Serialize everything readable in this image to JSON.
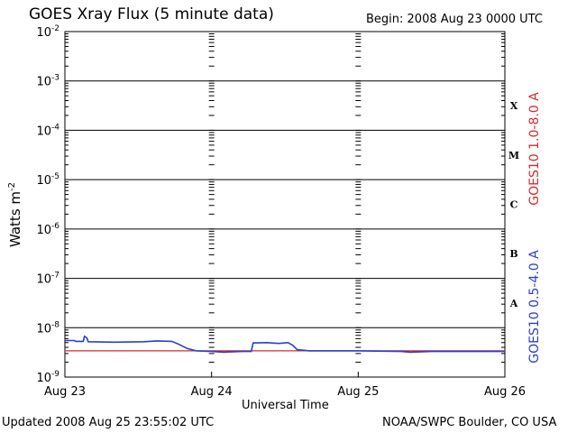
{
  "title": "GOES Xray Flux (5 minute data)",
  "begin_label": "Begin:  2008 Aug 23 0000 UTC",
  "updated_label": "Updated 2008 Aug 25 23:55:02 UTC",
  "source_label": "NOAA/SWPC Boulder, CO USA",
  "colors": {
    "long_channel": "#d52b2b",
    "short_channel": "#2a3fcf",
    "axis": "#000000"
  },
  "chart_data": {
    "type": "line",
    "xlabel": "Universal Time",
    "ylabel": "Watts m",
    "ylabel_exponent": "-2",
    "x_ticks": [
      "Aug 23",
      "Aug 24",
      "Aug 25",
      "Aug 26"
    ],
    "xlim_hours": [
      0,
      72
    ],
    "yscale": "log",
    "ylim": [
      1e-09,
      0.01
    ],
    "y_tick_labels": [
      {
        "base": "10",
        "exp": "-2",
        "value": 0.01
      },
      {
        "base": "10",
        "exp": "-3",
        "value": 0.001
      },
      {
        "base": "10",
        "exp": "-4",
        "value": 0.0001
      },
      {
        "base": "10",
        "exp": "-5",
        "value": 1e-05
      },
      {
        "base": "10",
        "exp": "-6",
        "value": 1e-06
      },
      {
        "base": "10",
        "exp": "-7",
        "value": 1e-07
      },
      {
        "base": "10",
        "exp": "-8",
        "value": 1e-08
      },
      {
        "base": "10",
        "exp": "-9",
        "value": 1e-09
      }
    ],
    "flare_classes": [
      {
        "label": "X",
        "lower": 0.0001
      },
      {
        "label": "M",
        "lower": 1e-05
      },
      {
        "label": "C",
        "lower": 1e-06
      },
      {
        "label": "B",
        "lower": 1e-07
      },
      {
        "label": "A",
        "lower": 1e-08
      }
    ],
    "series": [
      {
        "name": "GOES10 1.0-8.0 A",
        "color": "#d52b2b",
        "points": [
          [
            0,
            3.4e-09
          ],
          [
            72,
            3.4e-09
          ]
        ]
      },
      {
        "name": "GOES10 0.5-4.0 A",
        "color": "#2a3fcf",
        "points": [
          [
            0,
            5.5e-09
          ],
          [
            1.5,
            5.5e-09
          ],
          [
            1.8,
            5.3e-09
          ],
          [
            3.0,
            5.3e-09
          ],
          [
            3.2,
            6.7e-09
          ],
          [
            3.6,
            6.2e-09
          ],
          [
            3.8,
            5.2e-09
          ],
          [
            8,
            5.1e-09
          ],
          [
            13,
            5.2e-09
          ],
          [
            15,
            5.4e-09
          ],
          [
            17.5,
            5.3e-09
          ],
          [
            18.5,
            4.7e-09
          ],
          [
            20,
            3.8e-09
          ],
          [
            21.5,
            3.4e-09
          ],
          [
            24,
            3.3e-09
          ],
          [
            26,
            3.2e-09
          ],
          [
            29,
            3.3e-09
          ],
          [
            30.5,
            3.3e-09
          ],
          [
            30.8,
            4.9e-09
          ],
          [
            33,
            5e-09
          ],
          [
            35,
            4.8e-09
          ],
          [
            36.5,
            5e-09
          ],
          [
            37.3,
            4.4e-09
          ],
          [
            38,
            3.6e-09
          ],
          [
            40,
            3.4e-09
          ],
          [
            48,
            3.4e-09
          ],
          [
            55,
            3.3e-09
          ],
          [
            56.5,
            3.2e-09
          ],
          [
            60,
            3.3e-09
          ],
          [
            66,
            3.3e-09
          ],
          [
            72,
            3.3e-09
          ]
        ]
      }
    ],
    "grid": "horizontal at each decade, dashed vertical at day boundaries",
    "legend_placement": "right, vertical"
  }
}
